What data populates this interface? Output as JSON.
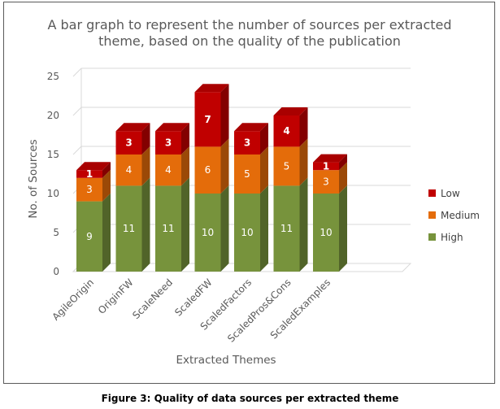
{
  "chart_data": {
    "type": "bar",
    "stacked": true,
    "three_d": true,
    "title": "A bar graph to represent the number of sources per extracted theme, based on the quality of the publication",
    "title_lines": [
      "A bar graph to represent the number of sources per extracted",
      "theme, based on the quality of the publication"
    ],
    "xlabel": "Extracted Themes",
    "ylabel": "No. of Sources",
    "ylim": [
      0,
      25
    ],
    "yticks": [
      "0",
      "5",
      "10",
      "15",
      "20",
      "25"
    ],
    "grid": true,
    "legend_position": "right",
    "categories": [
      "AgileOrigin",
      "OriginFW",
      "ScaleNeed",
      "ScaledFW",
      "ScaledFactors",
      "ScaledPros&Cons",
      "ScaledExamples"
    ],
    "series": [
      {
        "name": "High",
        "values": [
          9,
          11,
          11,
          10,
          10,
          11,
          10
        ],
        "color": "#77933c"
      },
      {
        "name": "Medium",
        "values": [
          3,
          4,
          4,
          6,
          5,
          5,
          3
        ],
        "color": "#e46c0a"
      },
      {
        "name": "Low",
        "values": [
          1,
          3,
          3,
          7,
          3,
          4,
          1
        ],
        "color": "#c00000"
      }
    ],
    "legend_order": [
      "Low",
      "Medium",
      "High"
    ]
  },
  "caption": "Figure 3: Quality of data sources per extracted theme"
}
